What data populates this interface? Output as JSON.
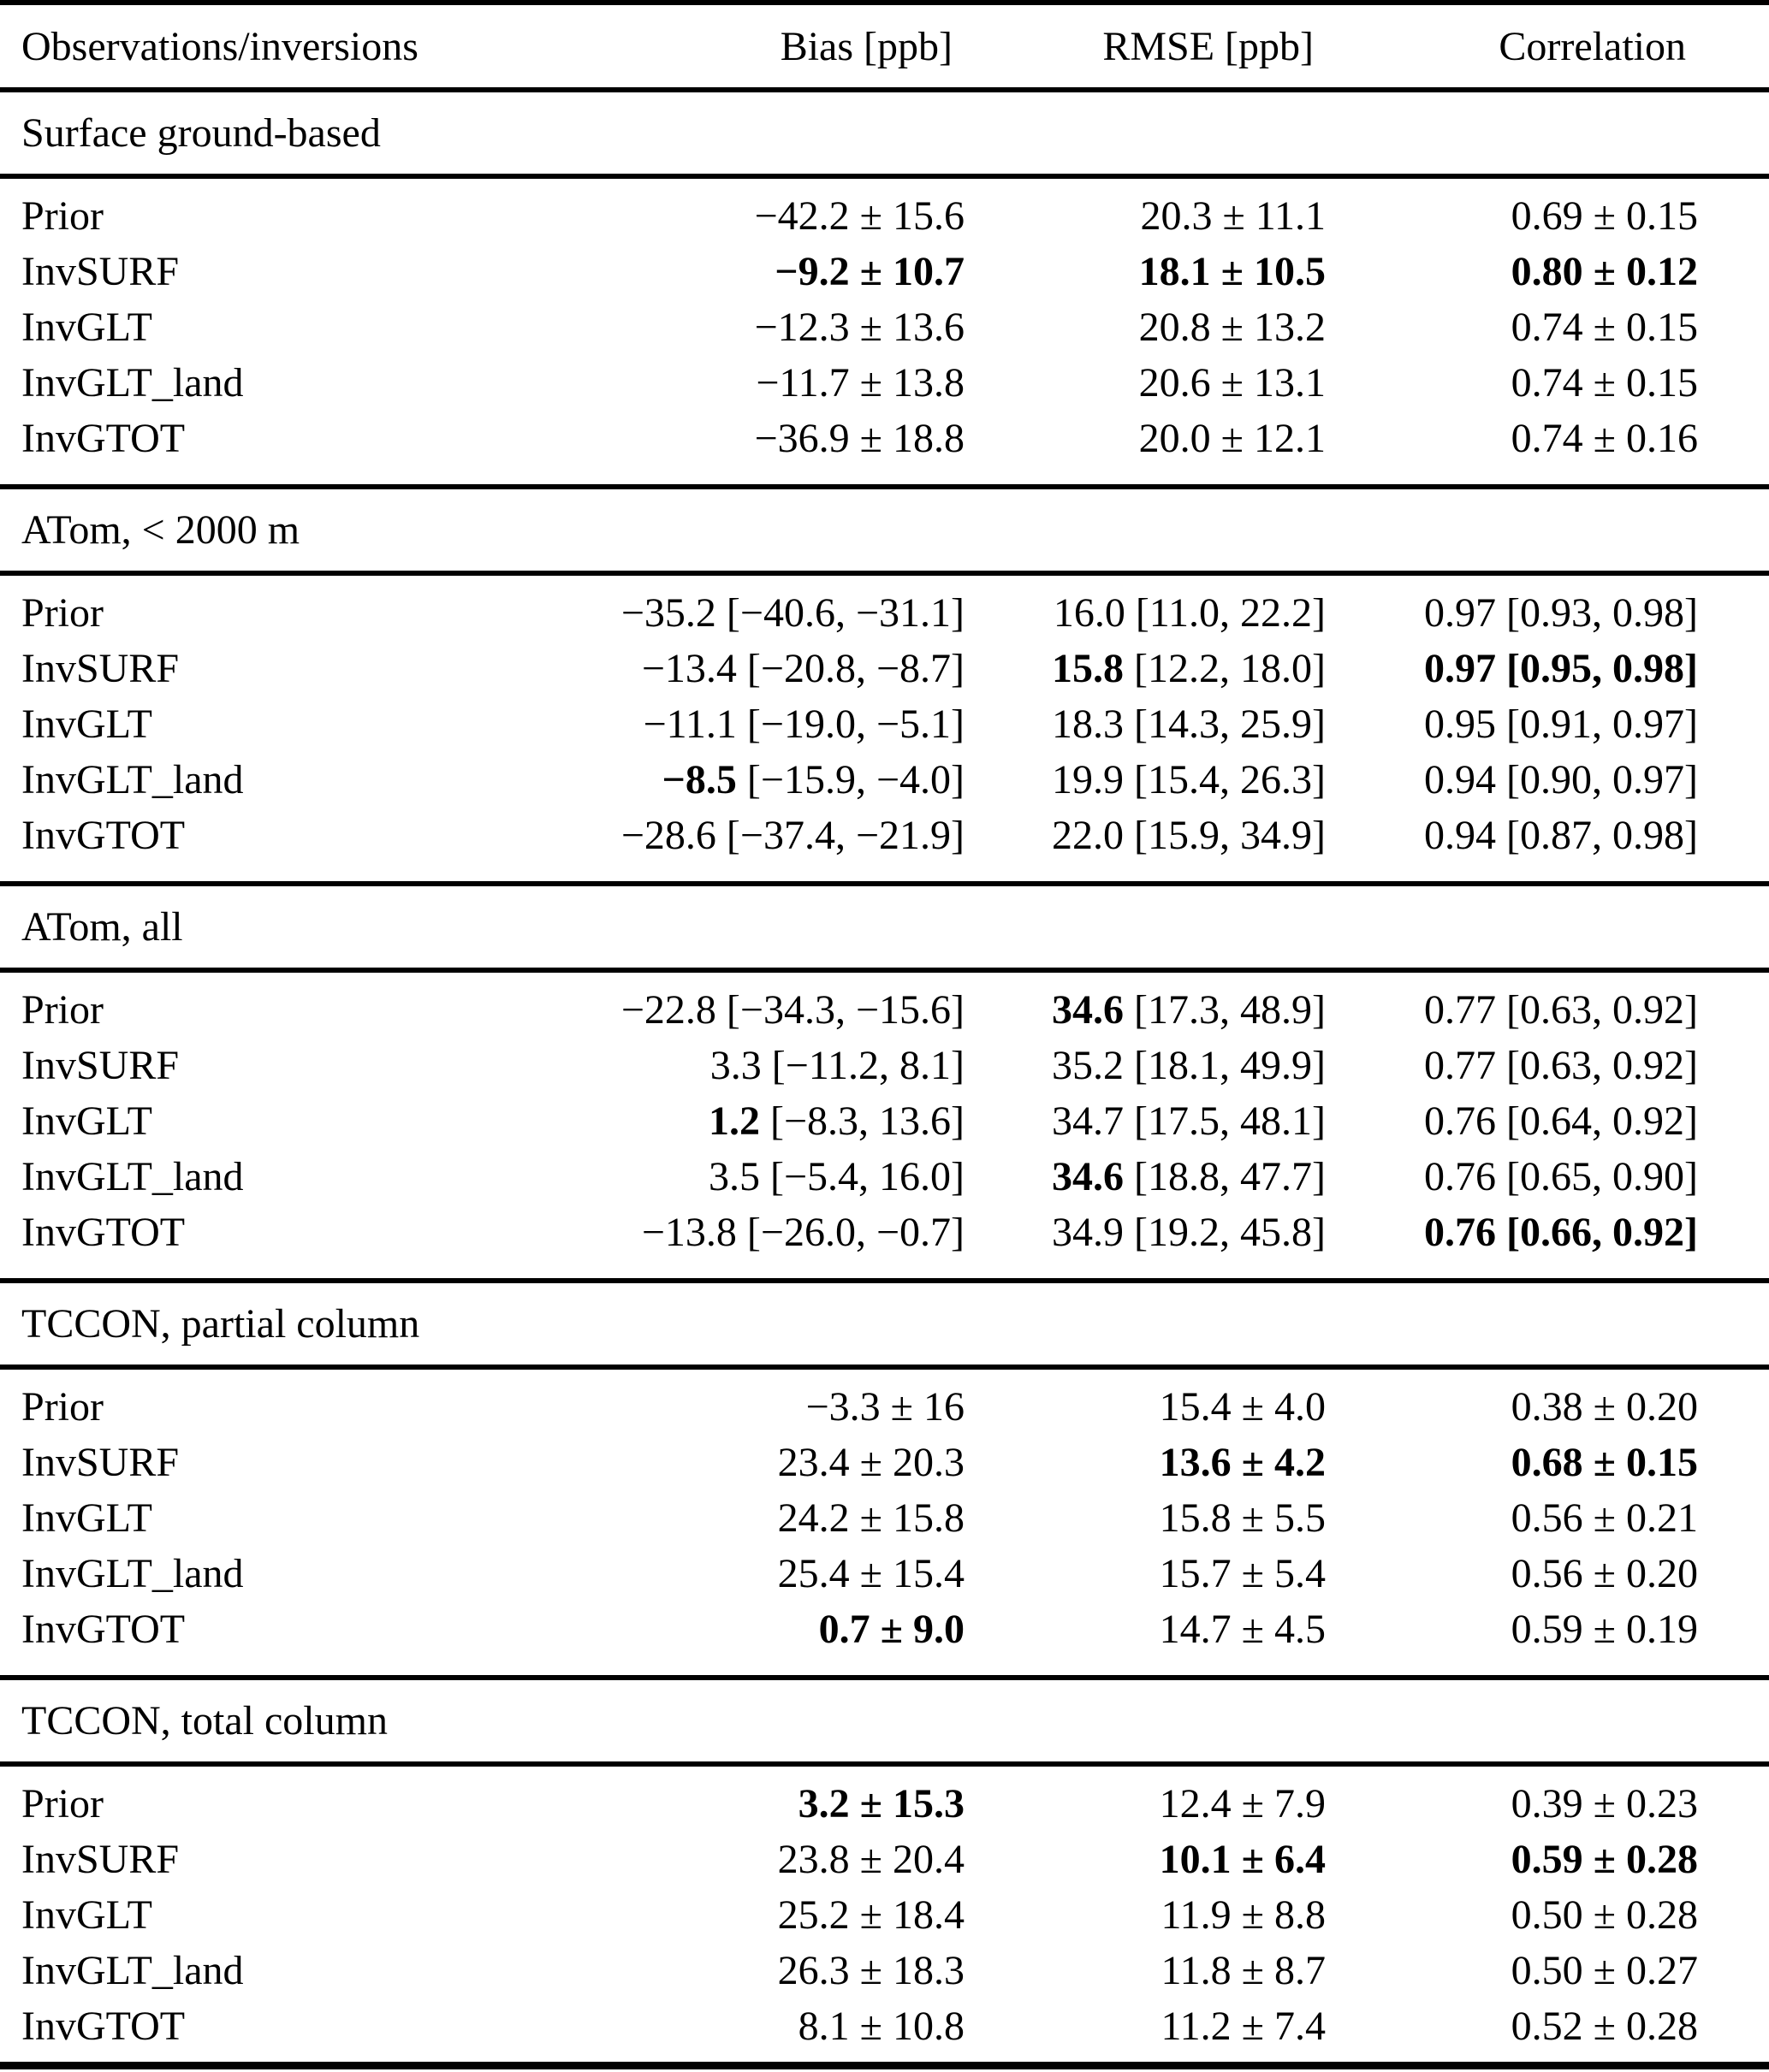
{
  "table": {
    "columns": [
      "Observations/inversions",
      "Bias [ppb]",
      "RMSE [ppb]",
      "Correlation"
    ],
    "sections": [
      {
        "title": "Surface ground-based",
        "rows": [
          {
            "label": "Prior",
            "bias": {
              "b": "",
              "r": "−42.2 ± 15.6"
            },
            "rmse": {
              "b": "",
              "r": "20.3 ± 11.1"
            },
            "corr": {
              "b": "",
              "r": "0.69 ± 0.15"
            }
          },
          {
            "label": "InvSURF",
            "bias": {
              "b": "−9.2 ± 10.7",
              "r": ""
            },
            "rmse": {
              "b": "18.1 ± 10.5",
              "r": ""
            },
            "corr": {
              "b": "0.80 ± 0.12",
              "r": ""
            }
          },
          {
            "label": "InvGLT",
            "bias": {
              "b": "",
              "r": "−12.3 ± 13.6"
            },
            "rmse": {
              "b": "",
              "r": "20.8 ± 13.2"
            },
            "corr": {
              "b": "",
              "r": "0.74 ± 0.15"
            }
          },
          {
            "label": "InvGLT_land",
            "bias": {
              "b": "",
              "r": "−11.7 ± 13.8"
            },
            "rmse": {
              "b": "",
              "r": "20.6 ± 13.1"
            },
            "corr": {
              "b": "",
              "r": "0.74 ± 0.15"
            }
          },
          {
            "label": "InvGTOT",
            "bias": {
              "b": "",
              "r": "−36.9 ± 18.8"
            },
            "rmse": {
              "b": "",
              "r": "20.0 ± 12.1"
            },
            "corr": {
              "b": "",
              "r": "0.74 ± 0.16"
            }
          }
        ]
      },
      {
        "title": "ATom, < 2000 m",
        "rows": [
          {
            "label": "Prior",
            "bias": {
              "b": "",
              "r": "−35.2 [−40.6, −31.1]"
            },
            "rmse": {
              "b": "",
              "r": "16.0 [11.0, 22.2]"
            },
            "corr": {
              "b": "",
              "r": "0.97 [0.93, 0.98]"
            }
          },
          {
            "label": "InvSURF",
            "bias": {
              "b": "",
              "r": "−13.4 [−20.8, −8.7]"
            },
            "rmse": {
              "b": "15.8",
              "r": " [12.2, 18.0]"
            },
            "corr": {
              "b": "0.97 [0.95, 0.98]",
              "r": ""
            }
          },
          {
            "label": "InvGLT",
            "bias": {
              "b": "",
              "r": "−11.1 [−19.0, −5.1]"
            },
            "rmse": {
              "b": "",
              "r": "18.3 [14.3, 25.9]"
            },
            "corr": {
              "b": "",
              "r": "0.95 [0.91, 0.97]"
            }
          },
          {
            "label": "InvGLT_land",
            "bias": {
              "b": "−8.5",
              "r": " [−15.9, −4.0]"
            },
            "rmse": {
              "b": "",
              "r": "19.9 [15.4, 26.3]"
            },
            "corr": {
              "b": "",
              "r": "0.94 [0.90, 0.97]"
            }
          },
          {
            "label": "InvGTOT",
            "bias": {
              "b": "",
              "r": "−28.6 [−37.4, −21.9]"
            },
            "rmse": {
              "b": "",
              "r": "22.0 [15.9, 34.9]"
            },
            "corr": {
              "b": "",
              "r": "0.94 [0.87, 0.98]"
            }
          }
        ]
      },
      {
        "title": "ATom, all",
        "rows": [
          {
            "label": "Prior",
            "bias": {
              "b": "",
              "r": "−22.8 [−34.3, −15.6]"
            },
            "rmse": {
              "b": "34.6",
              "r": " [17.3, 48.9]"
            },
            "corr": {
              "b": "",
              "r": "0.77 [0.63, 0.92]"
            }
          },
          {
            "label": "InvSURF",
            "bias": {
              "b": "",
              "r": "3.3 [−11.2, 8.1]"
            },
            "rmse": {
              "b": "",
              "r": "35.2 [18.1, 49.9]"
            },
            "corr": {
              "b": "",
              "r": "0.77 [0.63, 0.92]"
            }
          },
          {
            "label": "InvGLT",
            "bias": {
              "b": "1.2",
              "r": " [−8.3, 13.6]"
            },
            "rmse": {
              "b": "",
              "r": "34.7 [17.5, 48.1]"
            },
            "corr": {
              "b": "",
              "r": "0.76 [0.64, 0.92]"
            }
          },
          {
            "label": "InvGLT_land",
            "bias": {
              "b": "",
              "r": "3.5 [−5.4, 16.0]"
            },
            "rmse": {
              "b": "34.6",
              "r": " [18.8, 47.7]"
            },
            "corr": {
              "b": "",
              "r": "0.76 [0.65, 0.90]"
            }
          },
          {
            "label": "InvGTOT",
            "bias": {
              "b": "",
              "r": "−13.8 [−26.0, −0.7]"
            },
            "rmse": {
              "b": "",
              "r": "34.9 [19.2, 45.8]"
            },
            "corr": {
              "b": "0.76 [0.66, 0.92]",
              "r": ""
            }
          }
        ]
      },
      {
        "title": "TCCON, partial column",
        "rows": [
          {
            "label": "Prior",
            "bias": {
              "b": "",
              "r": "−3.3 ± 16"
            },
            "rmse": {
              "b": "",
              "r": "15.4 ± 4.0"
            },
            "corr": {
              "b": "",
              "r": "0.38 ± 0.20"
            }
          },
          {
            "label": "InvSURF",
            "bias": {
              "b": "",
              "r": "23.4 ± 20.3"
            },
            "rmse": {
              "b": "13.6 ± 4.2",
              "r": ""
            },
            "corr": {
              "b": "0.68 ± 0.15",
              "r": ""
            }
          },
          {
            "label": "InvGLT",
            "bias": {
              "b": "",
              "r": "24.2 ± 15.8"
            },
            "rmse": {
              "b": "",
              "r": "15.8 ± 5.5"
            },
            "corr": {
              "b": "",
              "r": "0.56 ± 0.21"
            }
          },
          {
            "label": "InvGLT_land",
            "bias": {
              "b": "",
              "r": "25.4 ± 15.4"
            },
            "rmse": {
              "b": "",
              "r": "15.7 ± 5.4"
            },
            "corr": {
              "b": "",
              "r": "0.56 ± 0.20"
            }
          },
          {
            "label": "InvGTOT",
            "bias": {
              "b": "0.7 ± 9.0",
              "r": ""
            },
            "rmse": {
              "b": "",
              "r": "14.7 ± 4.5"
            },
            "corr": {
              "b": "",
              "r": "0.59 ± 0.19"
            }
          }
        ]
      },
      {
        "title": "TCCON, total column",
        "rows": [
          {
            "label": "Prior",
            "bias": {
              "b": "3.2 ± 15.3",
              "r": ""
            },
            "rmse": {
              "b": "",
              "r": "12.4 ± 7.9"
            },
            "corr": {
              "b": "",
              "r": "0.39 ± 0.23"
            }
          },
          {
            "label": "InvSURF",
            "bias": {
              "b": "",
              "r": "23.8 ± 20.4"
            },
            "rmse": {
              "b": "10.1 ± 6.4",
              "r": ""
            },
            "corr": {
              "b": "0.59 ± 0.28",
              "r": ""
            }
          },
          {
            "label": "InvGLT",
            "bias": {
              "b": "",
              "r": "25.2 ± 18.4"
            },
            "rmse": {
              "b": "",
              "r": "11.9 ± 8.8"
            },
            "corr": {
              "b": "",
              "r": "0.50 ± 0.28"
            }
          },
          {
            "label": "InvGLT_land",
            "bias": {
              "b": "",
              "r": "26.3 ± 18.3"
            },
            "rmse": {
              "b": "",
              "r": "11.8 ± 8.7"
            },
            "corr": {
              "b": "",
              "r": "0.50 ± 0.27"
            }
          },
          {
            "label": "InvGTOT",
            "bias": {
              "b": "",
              "r": "8.1 ± 10.8"
            },
            "rmse": {
              "b": "",
              "r": "11.2 ± 7.4"
            },
            "corr": {
              "b": "",
              "r": "0.52 ± 0.28"
            }
          }
        ]
      }
    ]
  }
}
